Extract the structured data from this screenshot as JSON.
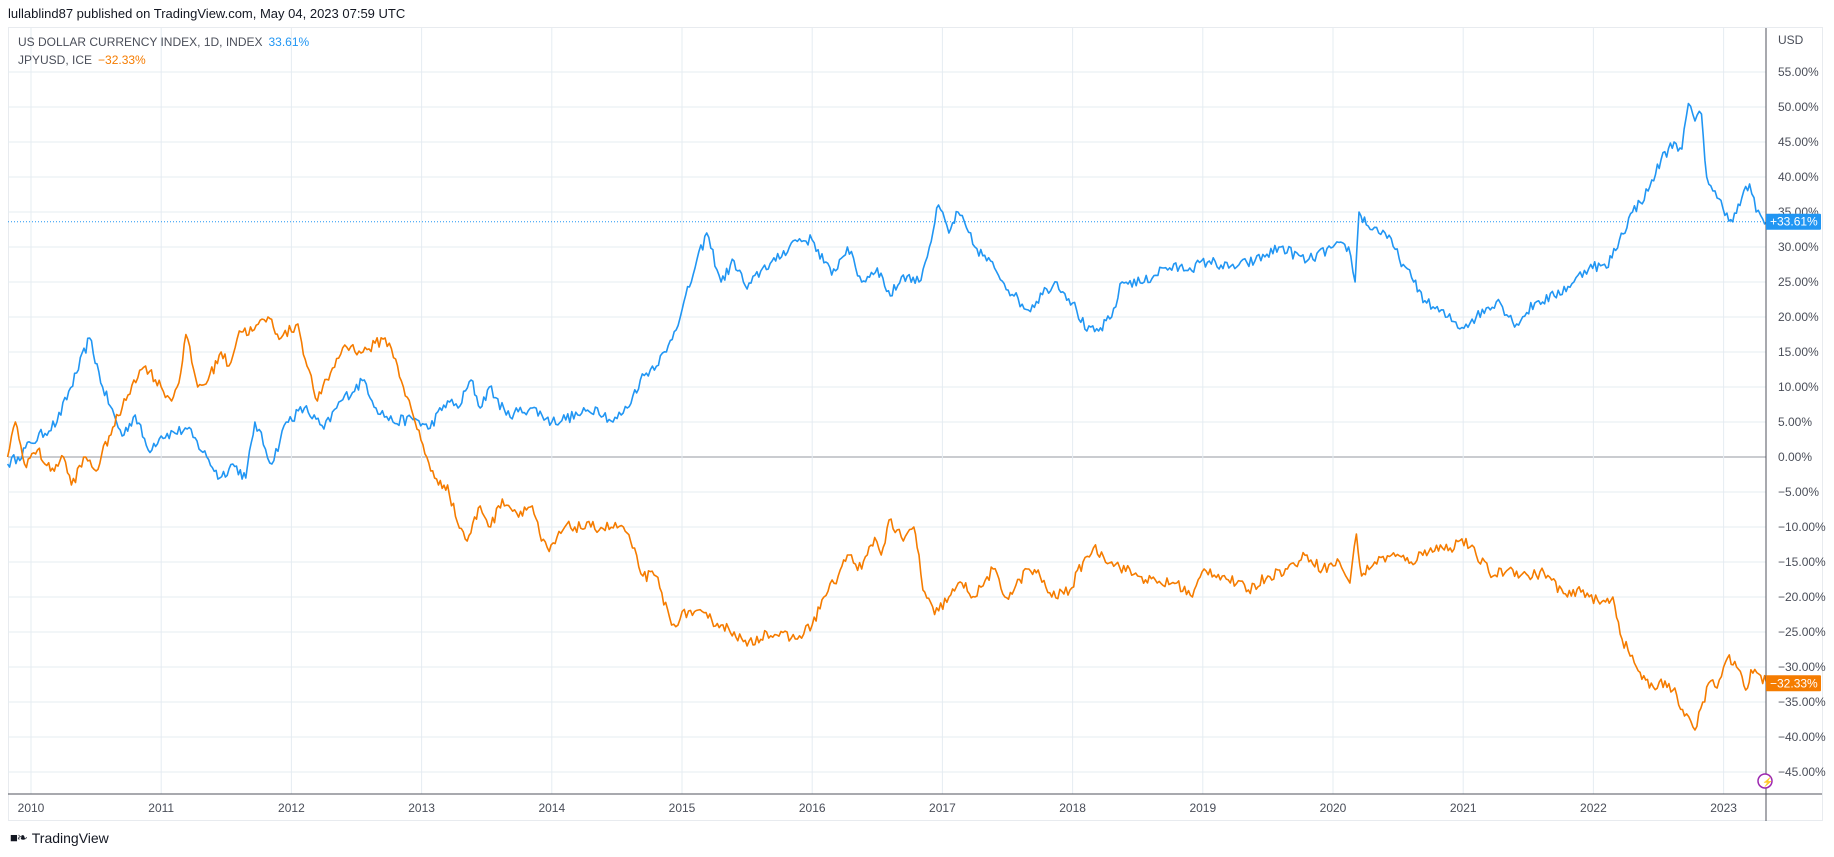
{
  "header": {
    "publish_text": "lullablind87 published on TradingView.com, May 04, 2023 07:59 UTC"
  },
  "footer": {
    "brand": "TradingView",
    "logo_icon": "tradingview-logo-icon"
  },
  "colors": {
    "dxy": "#2196f3",
    "jpy": "#f57c00",
    "grid": "#e5ecf2",
    "axis": "#50535e"
  },
  "chart_data": {
    "type": "line",
    "currency_label": "USD",
    "ylim": [
      -48,
      58
    ],
    "xlim": [
      2009.82,
      2023.33
    ],
    "y_ticks": [
      "55.00%",
      "50.00%",
      "45.00%",
      "40.00%",
      "35.00%",
      "30.00%",
      "25.00%",
      "20.00%",
      "15.00%",
      "10.00%",
      "5.00%",
      "0.00%",
      "−5.00%",
      "−10.00%",
      "−15.00%",
      "−20.00%",
      "−25.00%",
      "−30.00%",
      "−35.00%",
      "−40.00%",
      "−45.00%"
    ],
    "y_tick_values": [
      55,
      50,
      45,
      40,
      35,
      30,
      25,
      20,
      15,
      10,
      5,
      0,
      -5,
      -10,
      -15,
      -20,
      -25,
      -30,
      -35,
      -40,
      -45
    ],
    "x_ticks": [
      "2010",
      "2011",
      "2012",
      "2013",
      "2014",
      "2015",
      "2016",
      "2017",
      "2018",
      "2019",
      "2020",
      "2021",
      "2022",
      "2023"
    ],
    "x_tick_values": [
      2010,
      2011,
      2012,
      2013,
      2014,
      2015,
      2016,
      2017,
      2018,
      2019,
      2020,
      2021,
      2022,
      2023
    ],
    "series": [
      {
        "name": "US DOLLAR CURRENCY INDEX, 1D, INDEX",
        "last_label": "33.61%",
        "badge": "+33.61%",
        "last": 33.61,
        "color": "#2196f3",
        "points": [
          [
            2009.82,
            -1
          ],
          [
            2009.9,
            0
          ],
          [
            2010.0,
            2
          ],
          [
            2010.2,
            5
          ],
          [
            2010.35,
            12
          ],
          [
            2010.45,
            17
          ],
          [
            2010.55,
            10
          ],
          [
            2010.7,
            3
          ],
          [
            2010.8,
            6
          ],
          [
            2010.9,
            1
          ],
          [
            2011.0,
            3
          ],
          [
            2011.2,
            4
          ],
          [
            2011.35,
            0
          ],
          [
            2011.45,
            -3
          ],
          [
            2011.55,
            -1
          ],
          [
            2011.65,
            -3
          ],
          [
            2011.72,
            5
          ],
          [
            2011.85,
            -1
          ],
          [
            2011.96,
            5
          ],
          [
            2012.1,
            7
          ],
          [
            2012.25,
            4
          ],
          [
            2012.38,
            8
          ],
          [
            2012.56,
            11
          ],
          [
            2012.65,
            7
          ],
          [
            2012.78,
            5
          ],
          [
            2012.95,
            5.5
          ],
          [
            2013.05,
            4
          ],
          [
            2013.2,
            8
          ],
          [
            2013.28,
            7
          ],
          [
            2013.38,
            11
          ],
          [
            2013.45,
            7
          ],
          [
            2013.52,
            10
          ],
          [
            2013.65,
            6
          ],
          [
            2013.85,
            7
          ],
          [
            2014.0,
            5
          ],
          [
            2014.2,
            6
          ],
          [
            2014.35,
            7
          ],
          [
            2014.47,
            5
          ],
          [
            2014.58,
            7
          ],
          [
            2014.68,
            11
          ],
          [
            2014.88,
            15
          ],
          [
            2015.0,
            21
          ],
          [
            2015.1,
            27
          ],
          [
            2015.19,
            32
          ],
          [
            2015.3,
            25
          ],
          [
            2015.4,
            28
          ],
          [
            2015.5,
            24
          ],
          [
            2015.62,
            27
          ],
          [
            2015.72,
            28
          ],
          [
            2015.87,
            31
          ],
          [
            2016.0,
            31
          ],
          [
            2016.15,
            26
          ],
          [
            2016.27,
            30
          ],
          [
            2016.38,
            25
          ],
          [
            2016.5,
            27
          ],
          [
            2016.6,
            23
          ],
          [
            2016.7,
            26
          ],
          [
            2016.82,
            25
          ],
          [
            2016.9,
            30
          ],
          [
            2016.97,
            36
          ],
          [
            2017.05,
            32
          ],
          [
            2017.12,
            35
          ],
          [
            2017.25,
            30
          ],
          [
            2017.4,
            27
          ],
          [
            2017.55,
            23
          ],
          [
            2017.66,
            21
          ],
          [
            2017.8,
            24
          ],
          [
            2017.88,
            25
          ],
          [
            2018.0,
            22
          ],
          [
            2018.11,
            18
          ],
          [
            2018.2,
            18
          ],
          [
            2018.3,
            20
          ],
          [
            2018.38,
            25
          ],
          [
            2018.55,
            25
          ],
          [
            2018.7,
            27
          ],
          [
            2018.9,
            27
          ],
          [
            2019.05,
            28
          ],
          [
            2019.2,
            27
          ],
          [
            2019.4,
            28
          ],
          [
            2019.6,
            30
          ],
          [
            2019.8,
            28
          ],
          [
            2020.0,
            30
          ],
          [
            2020.12,
            30
          ],
          [
            2020.17,
            25
          ],
          [
            2020.2,
            35
          ],
          [
            2020.27,
            33
          ],
          [
            2020.4,
            32
          ],
          [
            2020.54,
            27.5
          ],
          [
            2020.62,
            25
          ],
          [
            2020.72,
            22
          ],
          [
            2020.88,
            20
          ],
          [
            2020.99,
            18.5
          ],
          [
            2021.1,
            20
          ],
          [
            2021.27,
            22.5
          ],
          [
            2021.35,
            20
          ],
          [
            2021.41,
            19
          ],
          [
            2021.55,
            22
          ],
          [
            2021.7,
            23
          ],
          [
            2021.85,
            25
          ],
          [
            2021.98,
            27.5
          ],
          [
            2022.1,
            27
          ],
          [
            2022.2,
            31
          ],
          [
            2022.3,
            35
          ],
          [
            2022.42,
            38
          ],
          [
            2022.52,
            42.5
          ],
          [
            2022.62,
            45
          ],
          [
            2022.68,
            44
          ],
          [
            2022.73,
            50.5
          ],
          [
            2022.78,
            48
          ],
          [
            2022.83,
            49
          ],
          [
            2022.87,
            40
          ],
          [
            2022.95,
            37
          ],
          [
            2023.07,
            33.6
          ],
          [
            2023.14,
            37
          ],
          [
            2023.2,
            39
          ],
          [
            2023.25,
            35
          ],
          [
            2023.3,
            34
          ],
          [
            2023.33,
            33.61
          ]
        ]
      },
      {
        "name": "JPYUSD, ICE",
        "last_label": "−32.33%",
        "badge": "−32.33%",
        "last": -32.33,
        "color": "#f57c00",
        "points": [
          [
            2009.82,
            0
          ],
          [
            2009.85,
            3
          ],
          [
            2009.88,
            5
          ],
          [
            2009.95,
            -1
          ],
          [
            2010.05,
            1
          ],
          [
            2010.15,
            -2
          ],
          [
            2010.25,
            0
          ],
          [
            2010.31,
            -4
          ],
          [
            2010.42,
            0
          ],
          [
            2010.5,
            -2
          ],
          [
            2010.6,
            3
          ],
          [
            2010.7,
            7
          ],
          [
            2010.79,
            11
          ],
          [
            2010.88,
            13
          ],
          [
            2011.0,
            10
          ],
          [
            2011.08,
            8
          ],
          [
            2011.15,
            12
          ],
          [
            2011.19,
            17.5
          ],
          [
            2011.28,
            10
          ],
          [
            2011.36,
            11
          ],
          [
            2011.46,
            15
          ],
          [
            2011.52,
            13
          ],
          [
            2011.6,
            18
          ],
          [
            2011.7,
            18
          ],
          [
            2011.82,
            20
          ],
          [
            2011.92,
            17
          ],
          [
            2012.05,
            19
          ],
          [
            2012.12,
            13
          ],
          [
            2012.2,
            8
          ],
          [
            2012.3,
            12
          ],
          [
            2012.41,
            16
          ],
          [
            2012.55,
            15
          ],
          [
            2012.72,
            17
          ],
          [
            2012.8,
            14
          ],
          [
            2012.86,
            10
          ],
          [
            2012.95,
            5
          ],
          [
            2013.04,
            0
          ],
          [
            2013.1,
            -3
          ],
          [
            2013.13,
            -4
          ],
          [
            2013.2,
            -4
          ],
          [
            2013.26,
            -8.5
          ],
          [
            2013.35,
            -12
          ],
          [
            2013.45,
            -7
          ],
          [
            2013.53,
            -10
          ],
          [
            2013.62,
            -6
          ],
          [
            2013.73,
            -8
          ],
          [
            2013.85,
            -7
          ],
          [
            2013.92,
            -12
          ],
          [
            2013.98,
            -13.5
          ],
          [
            2014.1,
            -10
          ],
          [
            2014.3,
            -10
          ],
          [
            2014.55,
            -10
          ],
          [
            2014.62,
            -13
          ],
          [
            2014.7,
            -17
          ],
          [
            2014.8,
            -17
          ],
          [
            2014.92,
            -24
          ],
          [
            2015.05,
            -22
          ],
          [
            2015.2,
            -23
          ],
          [
            2015.3,
            -24
          ],
          [
            2015.4,
            -25
          ],
          [
            2015.5,
            -27
          ],
          [
            2015.65,
            -25
          ],
          [
            2015.87,
            -26
          ],
          [
            2016.0,
            -24
          ],
          [
            2016.09,
            -20
          ],
          [
            2016.2,
            -17
          ],
          [
            2016.27,
            -14
          ],
          [
            2016.38,
            -16
          ],
          [
            2016.48,
            -11.5
          ],
          [
            2016.53,
            -14
          ],
          [
            2016.59,
            -9
          ],
          [
            2016.7,
            -12
          ],
          [
            2016.78,
            -10
          ],
          [
            2016.82,
            -14
          ],
          [
            2016.85,
            -19
          ],
          [
            2016.94,
            -22.5
          ],
          [
            2017.05,
            -20
          ],
          [
            2017.15,
            -18
          ],
          [
            2017.25,
            -20
          ],
          [
            2017.39,
            -16
          ],
          [
            2017.48,
            -20
          ],
          [
            2017.55,
            -19
          ],
          [
            2017.65,
            -16
          ],
          [
            2017.75,
            -17
          ],
          [
            2017.84,
            -20
          ],
          [
            2017.98,
            -19
          ],
          [
            2018.08,
            -15
          ],
          [
            2018.16,
            -13
          ],
          [
            2018.3,
            -15
          ],
          [
            2018.5,
            -17
          ],
          [
            2018.65,
            -18
          ],
          [
            2018.8,
            -18
          ],
          [
            2018.92,
            -20
          ],
          [
            2019.01,
            -16
          ],
          [
            2019.15,
            -17
          ],
          [
            2019.35,
            -19
          ],
          [
            2019.5,
            -17
          ],
          [
            2019.65,
            -16
          ],
          [
            2019.8,
            -14
          ],
          [
            2019.92,
            -16
          ],
          [
            2020.05,
            -15
          ],
          [
            2020.13,
            -18
          ],
          [
            2020.18,
            -11
          ],
          [
            2020.22,
            -17
          ],
          [
            2020.32,
            -15
          ],
          [
            2020.45,
            -14
          ],
          [
            2020.6,
            -15
          ],
          [
            2020.75,
            -13
          ],
          [
            2020.9,
            -13
          ],
          [
            2020.99,
            -11.7
          ],
          [
            2021.1,
            -14
          ],
          [
            2021.23,
            -17
          ],
          [
            2021.35,
            -16
          ],
          [
            2021.5,
            -17
          ],
          [
            2021.62,
            -16.5
          ],
          [
            2021.8,
            -20
          ],
          [
            2021.92,
            -19
          ],
          [
            2022.05,
            -21
          ],
          [
            2022.15,
            -20
          ],
          [
            2022.22,
            -26
          ],
          [
            2022.33,
            -30
          ],
          [
            2022.43,
            -33
          ],
          [
            2022.55,
            -32
          ],
          [
            2022.64,
            -34
          ],
          [
            2022.7,
            -37
          ],
          [
            2022.78,
            -39
          ],
          [
            2022.84,
            -35
          ],
          [
            2022.9,
            -32
          ],
          [
            2022.95,
            -33
          ],
          [
            2023.0,
            -30
          ],
          [
            2023.03,
            -28.7
          ],
          [
            2023.1,
            -30
          ],
          [
            2023.17,
            -33.3
          ],
          [
            2023.21,
            -30.4
          ],
          [
            2023.27,
            -31
          ],
          [
            2023.33,
            -32.33
          ]
        ]
      }
    ]
  }
}
